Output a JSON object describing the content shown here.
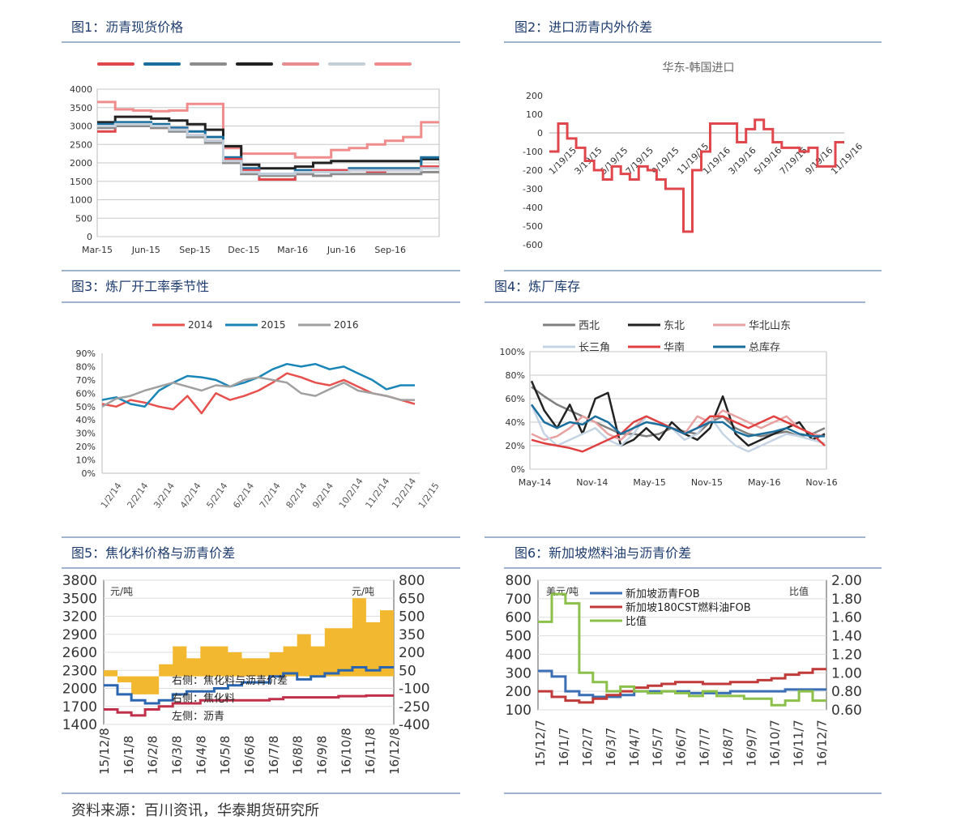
{
  "source": "资料来源：百川资讯，华泰期货研究所",
  "panels": [
    {
      "id": "c1",
      "title": "图1：沥青现货价格"
    },
    {
      "id": "c2",
      "title": "图2：进口沥青内外价差"
    },
    {
      "id": "c3",
      "title": "图3：炼厂开工率季节性"
    },
    {
      "id": "c4",
      "title": "图4：炼厂库存"
    },
    {
      "id": "c5",
      "title": "图5：焦化料价格与沥青价差"
    },
    {
      "id": "c6",
      "title": "图6：新加坡燃料油与沥青价差"
    }
  ],
  "chart_data": [
    {
      "id": "c1",
      "type": "line",
      "title": "",
      "ylim": [
        0,
        4000
      ],
      "yticks": [
        0,
        500,
        1000,
        1500,
        2000,
        2500,
        3000,
        3500,
        4000
      ],
      "xticks": [
        "Mar-15",
        "Jun-15",
        "Sep-15",
        "Dec-15",
        "Mar-16",
        "Jun-16",
        "Sep-16"
      ],
      "legend_colors": [
        "#e0474c",
        "#1a6e9e",
        "#8c8c8c",
        "#222222",
        "#e88e8e",
        "#c4cfdc",
        "#f08c8c"
      ],
      "series": [
        {
          "color": "#f08c8c",
          "values": [
            3650,
            3450,
            3420,
            3400,
            3420,
            3600,
            3600,
            2400,
            2250,
            2250,
            2250,
            2150,
            2150,
            2350,
            2400,
            2500,
            2600,
            2700,
            3100
          ]
        },
        {
          "color": "#222222",
          "values": [
            3100,
            3250,
            3250,
            3200,
            3150,
            3050,
            2900,
            2450,
            1950,
            1850,
            1850,
            1900,
            2000,
            2050,
            2050,
            2050,
            2050,
            2050,
            2100
          ]
        },
        {
          "color": "#1a6e9e",
          "values": [
            3050,
            3100,
            3100,
            3050,
            2950,
            2850,
            2700,
            2150,
            1850,
            1700,
            1700,
            1800,
            1800,
            1800,
            1850,
            1850,
            1850,
            1850,
            2150
          ]
        },
        {
          "color": "#e0474c",
          "values": [
            2850,
            3000,
            3000,
            2950,
            2900,
            2750,
            2600,
            2100,
            1800,
            1550,
            1550,
            1700,
            1800,
            1800,
            1800,
            1750,
            1800,
            1800,
            1900
          ]
        },
        {
          "color": "#8c8c8c",
          "values": [
            2950,
            3000,
            3000,
            2950,
            2850,
            2700,
            2550,
            2000,
            1700,
            1650,
            1650,
            1700,
            1650,
            1700,
            1700,
            1700,
            1700,
            1700,
            1750
          ]
        },
        {
          "color": "#c4cfdc",
          "values": [
            3000,
            3050,
            3050,
            3000,
            2900,
            2750,
            2600,
            2050,
            1750,
            1700,
            1700,
            1750,
            1750,
            1750,
            1800,
            1800,
            1800,
            1800,
            1850
          ]
        }
      ]
    },
    {
      "id": "c2",
      "type": "line",
      "title": "华东-韩国进口",
      "ylim": [
        -600,
        200
      ],
      "yticks": [
        200,
        100,
        0,
        -100,
        -200,
        -300,
        -400,
        -500,
        -600
      ],
      "xticks": [
        "1/19/15",
        "3/19/15",
        "5/19/15",
        "7/19/15",
        "9/19/15",
        "11/19/15",
        "1/19/16",
        "3/19/16",
        "5/19/16",
        "7/19/16",
        "9/19/16",
        "11/19/16"
      ],
      "series": [
        {
          "color": "#e0474c",
          "values": [
            -100,
            50,
            -30,
            -80,
            -150,
            -200,
            -250,
            -180,
            -220,
            -250,
            -180,
            -200,
            -250,
            -300,
            -300,
            -530,
            -200,
            -100,
            50,
            50,
            50,
            -50,
            20,
            70,
            20,
            -50,
            -80,
            -80,
            -100,
            -80,
            -180,
            -180,
            -50
          ]
        }
      ]
    },
    {
      "id": "c3",
      "type": "line",
      "title": "",
      "ylim": [
        0,
        90
      ],
      "yticks": [
        "0%",
        "10%",
        "20%",
        "30%",
        "40%",
        "50%",
        "60%",
        "70%",
        "80%",
        "90%"
      ],
      "xticks": [
        "1/2/14",
        "2/2/14",
        "3/2/14",
        "4/2/14",
        "5/2/14",
        "6/2/14",
        "7/2/14",
        "8/2/14",
        "9/2/14",
        "10/2/14",
        "11/2/14",
        "12/2/14",
        "1/2/15"
      ],
      "series": [
        {
          "name": "2014",
          "color": "#e8504e",
          "values": [
            52,
            50,
            55,
            53,
            50,
            48,
            58,
            45,
            60,
            55,
            58,
            62,
            68,
            75,
            72,
            68,
            66,
            70,
            65,
            60,
            58,
            55,
            52
          ]
        },
        {
          "name": "2015",
          "color": "#1a86b8",
          "values": [
            55,
            57,
            52,
            50,
            62,
            68,
            73,
            72,
            70,
            65,
            68,
            72,
            78,
            82,
            80,
            82,
            78,
            80,
            75,
            70,
            63,
            66,
            66
          ]
        },
        {
          "name": "2016",
          "color": "#a0a0a0",
          "values": [
            50,
            56,
            58,
            62,
            65,
            68,
            65,
            62,
            66,
            65,
            70,
            72,
            70,
            68,
            60,
            58,
            63,
            68,
            62,
            60,
            58,
            55,
            55
          ]
        }
      ]
    },
    {
      "id": "c4",
      "type": "line",
      "title": "",
      "ylim": [
        0,
        100
      ],
      "yticks": [
        "0%",
        "20%",
        "40%",
        "60%",
        "80%",
        "100%"
      ],
      "xticks": [
        "May-14",
        "Nov-14",
        "May-15",
        "Nov-15",
        "May-16",
        "Nov-16"
      ],
      "series": [
        {
          "name": "西北",
          "color": "#808080",
          "values": [
            70,
            62,
            55,
            50,
            45,
            40,
            35,
            30,
            30,
            28,
            30,
            35,
            32,
            30,
            40,
            45,
            35,
            30,
            28,
            30,
            32,
            28,
            30,
            35
          ]
        },
        {
          "name": "东北",
          "color": "#222222",
          "values": [
            75,
            50,
            35,
            55,
            30,
            60,
            65,
            20,
            25,
            35,
            25,
            40,
            30,
            25,
            35,
            62,
            30,
            20,
            25,
            30,
            35,
            40,
            25,
            30
          ]
        },
        {
          "name": "华北山东",
          "color": "#e8a0a0",
          "values": [
            30,
            25,
            28,
            35,
            45,
            40,
            30,
            25,
            35,
            45,
            40,
            35,
            30,
            45,
            40,
            50,
            45,
            40,
            35,
            40,
            45,
            35,
            30,
            28
          ]
        },
        {
          "name": "长三角",
          "color": "#c4d4e4",
          "values": [
            55,
            30,
            20,
            25,
            30,
            35,
            25,
            20,
            30,
            45,
            40,
            35,
            25,
            30,
            45,
            30,
            20,
            15,
            20,
            25,
            30,
            28,
            25,
            22
          ]
        },
        {
          "name": "华南",
          "color": "#e04040",
          "values": [
            25,
            22,
            20,
            18,
            15,
            20,
            25,
            30,
            40,
            45,
            40,
            35,
            30,
            35,
            45,
            45,
            40,
            35,
            40,
            45,
            40,
            35,
            30,
            20
          ]
        },
        {
          "name": "总库存",
          "color": "#1a6e9e",
          "values": [
            55,
            40,
            35,
            40,
            38,
            45,
            40,
            30,
            35,
            40,
            38,
            35,
            30,
            35,
            40,
            40,
            32,
            28,
            30,
            32,
            35,
            30,
            28,
            28
          ]
        }
      ]
    },
    {
      "id": "c5",
      "type": "bar+line",
      "title": "",
      "left_unit": "元/吨",
      "right_unit": "元/吨",
      "left_ylim": [
        1400,
        3800
      ],
      "right_ylim": [
        -400,
        800
      ],
      "left_yticks": [
        1400,
        1700,
        2000,
        2300,
        2600,
        2900,
        3200,
        3500,
        3800
      ],
      "right_yticks": [
        -400,
        -250,
        -100,
        50,
        200,
        350,
        500,
        650,
        800
      ],
      "xticks": [
        "15/12/8",
        "16/1/8",
        "16/2/8",
        "16/3/8",
        "16/4/8",
        "16/5/8",
        "16/6/8",
        "16/7/8",
        "16/8/8",
        "16/9/8",
        "16/10/8",
        "16/11/8",
        "16/12/8"
      ],
      "legend": [
        "右侧：焦化料与沥青价差",
        "右侧：焦化料",
        "左侧：沥青"
      ],
      "spread_values": [
        50,
        -50,
        -150,
        -150,
        100,
        250,
        150,
        250,
        250,
        200,
        150,
        150,
        200,
        250,
        350,
        250,
        400,
        400,
        650,
        450,
        550
      ],
      "line_coker": {
        "color": "#2a66b0",
        "values": [
          2050,
          1900,
          1800,
          1750,
          1800,
          1900,
          1950,
          1950,
          2000,
          2050,
          2100,
          2100,
          2200,
          2250,
          2150,
          2200,
          2250,
          2300,
          2350,
          2300,
          2350
        ]
      },
      "line_asphalt": {
        "color": "#c0304a",
        "values": [
          1650,
          1600,
          1550,
          1650,
          1700,
          1750,
          1750,
          1800,
          1800,
          1800,
          1800,
          1800,
          1820,
          1850,
          1850,
          1850,
          1850,
          1870,
          1870,
          1880,
          1880
        ]
      }
    },
    {
      "id": "c6",
      "type": "line",
      "title": "",
      "left_unit": "美元/吨",
      "right_unit": "比值",
      "left_ylim": [
        100,
        800
      ],
      "right_ylim": [
        0.6,
        2.0
      ],
      "left_yticks": [
        100,
        200,
        300,
        400,
        500,
        600,
        700,
        800
      ],
      "right_yticks": [
        "0.60",
        "0.80",
        "1.00",
        "1.20",
        "1.40",
        "1.60",
        "1.80",
        "2.00"
      ],
      "xticks": [
        "15/12/7",
        "16/1/7",
        "16/2/7",
        "16/3/7",
        "16/4/7",
        "16/5/7",
        "16/6/7",
        "16/7/7",
        "16/8/7",
        "16/9/7",
        "16/10/7",
        "16/11/7",
        "16/12/7"
      ],
      "legend": [
        "新加坡沥青FOB",
        "新加坡180CST燃料油FOB",
        "比值"
      ],
      "series": [
        {
          "name": "新加坡沥青FOB",
          "color": "#3a6fb5",
          "values": [
            310,
            280,
            200,
            180,
            170,
            170,
            180,
            200,
            200,
            200,
            200,
            190,
            190,
            190,
            200,
            200,
            200,
            200,
            210,
            210,
            210
          ]
        },
        {
          "name": "新加坡180CST燃料油FOB",
          "color": "#c03a3a",
          "values": [
            200,
            170,
            150,
            140,
            160,
            180,
            200,
            220,
            230,
            240,
            250,
            250,
            240,
            240,
            250,
            250,
            260,
            270,
            290,
            300,
            320
          ]
        },
        {
          "name": "比值",
          "color": "#8cc04a",
          "values": [
            1.55,
            1.85,
            1.75,
            1.0,
            0.9,
            0.8,
            0.85,
            0.8,
            0.78,
            0.8,
            0.78,
            0.75,
            0.8,
            0.75,
            0.75,
            0.72,
            0.72,
            0.65,
            0.7,
            0.8,
            0.7
          ]
        }
      ]
    }
  ]
}
